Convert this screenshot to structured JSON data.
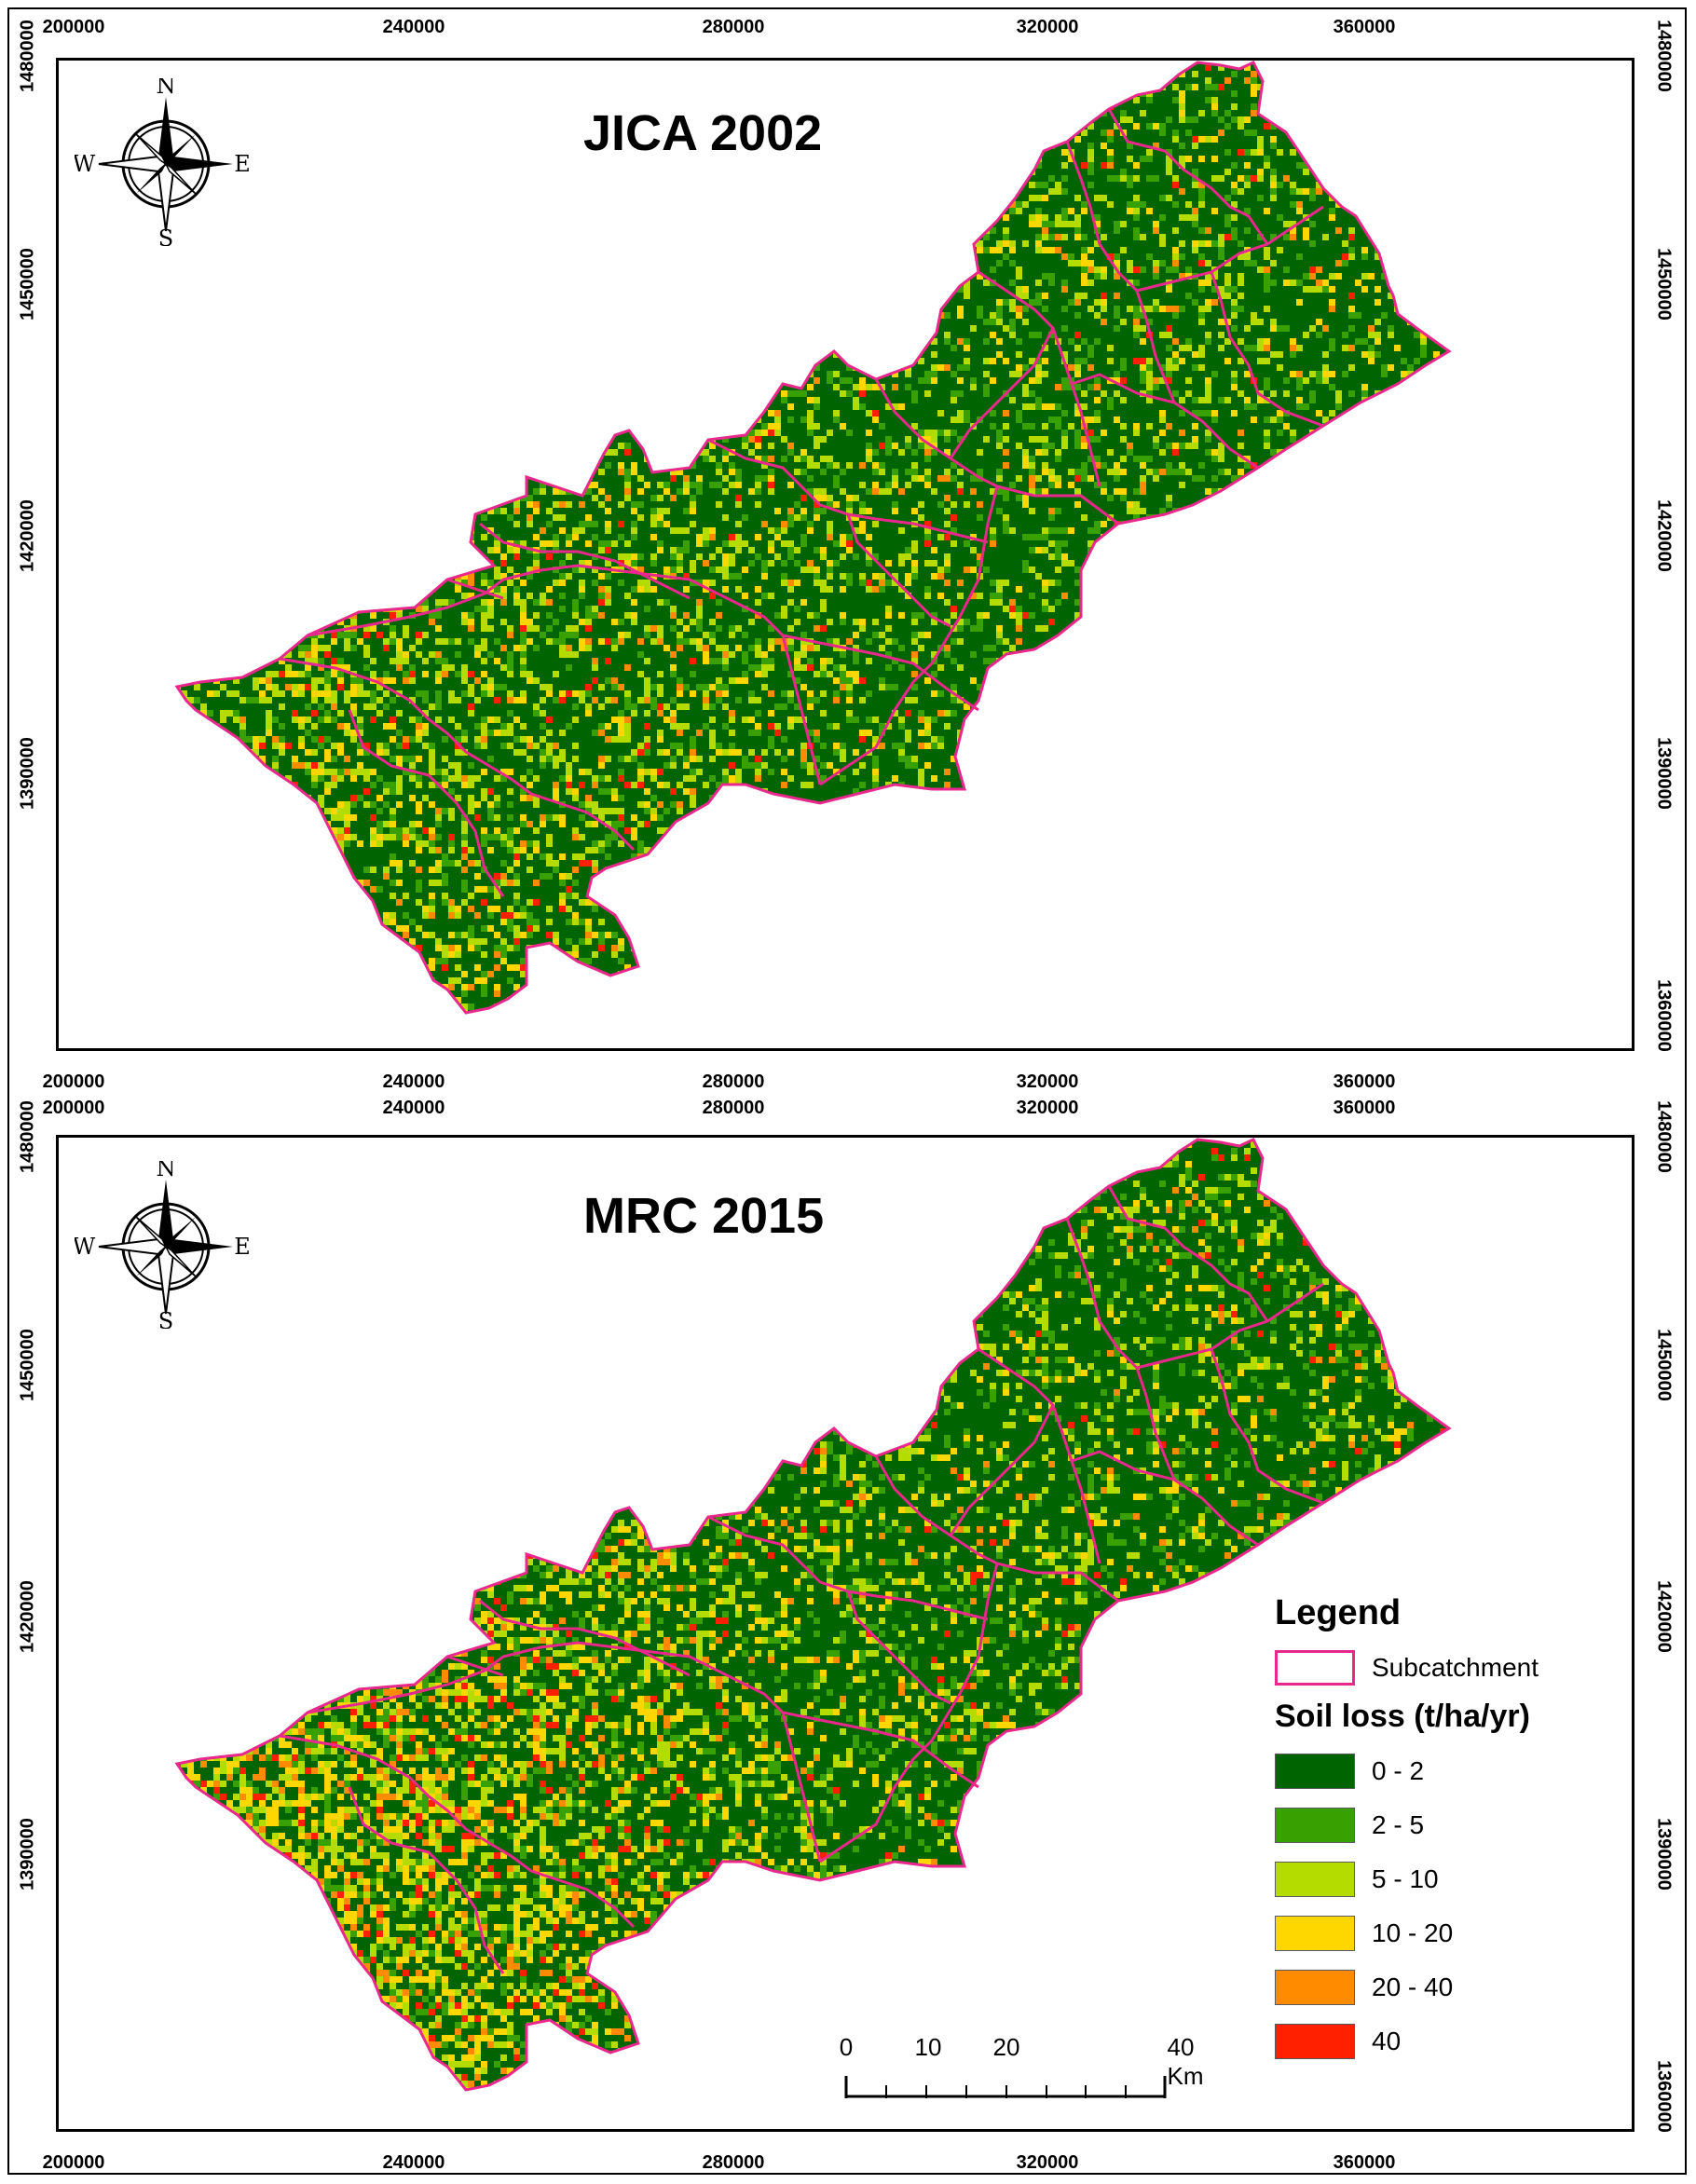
{
  "panels": [
    {
      "title": "JICA 2002",
      "x_ticks_top": [
        "200000",
        "240000",
        "280000",
        "320000",
        "360000"
      ],
      "x_ticks_bottom": [
        "200000",
        "240000",
        "280000",
        "320000",
        "360000"
      ],
      "y_ticks_left": [
        "1480000",
        "1450000",
        "1420000",
        "1390000"
      ],
      "y_ticks_right": [
        "1480000",
        "1450000",
        "1420000",
        "1390000",
        "1360000"
      ],
      "north_arrow": {
        "n": "N",
        "s": "S",
        "e": "E",
        "w": "W"
      }
    },
    {
      "title": "MRC 2015",
      "x_ticks_top": [
        "200000",
        "240000",
        "280000",
        "320000",
        "360000"
      ],
      "x_ticks_bottom": [
        "200000",
        "240000",
        "280000",
        "320000",
        "360000"
      ],
      "y_ticks_left": [
        "1480000",
        "1450000",
        "1420000",
        "1390000"
      ],
      "y_ticks_right": [
        "1480000",
        "1450000",
        "1420000",
        "1390000",
        "1360000"
      ],
      "north_arrow": {
        "n": "N",
        "s": "S",
        "e": "E",
        "w": "W"
      }
    }
  ],
  "legend": {
    "title": "Legend",
    "subcatchment_label": "Subcatchment",
    "soil_loss_title": "Soil loss (t/ha/yr)",
    "classes": [
      {
        "label": "0 - 2",
        "color": "#006400"
      },
      {
        "label": "2 - 5",
        "color": "#38a000"
      },
      {
        "label": "5 - 10",
        "color": "#b4dc00"
      },
      {
        "label": "10 - 20",
        "color": "#ffd700"
      },
      {
        "label": "20 - 40",
        "color": "#ff8c00"
      },
      {
        "label": "40",
        "color": "#ff2000"
      }
    ]
  },
  "scale_bar": {
    "labels": [
      "0",
      "10",
      "20",
      "40 Km"
    ]
  },
  "colors": {
    "subcatchment_boundary": "#e8288c",
    "background": "#ffffff"
  }
}
